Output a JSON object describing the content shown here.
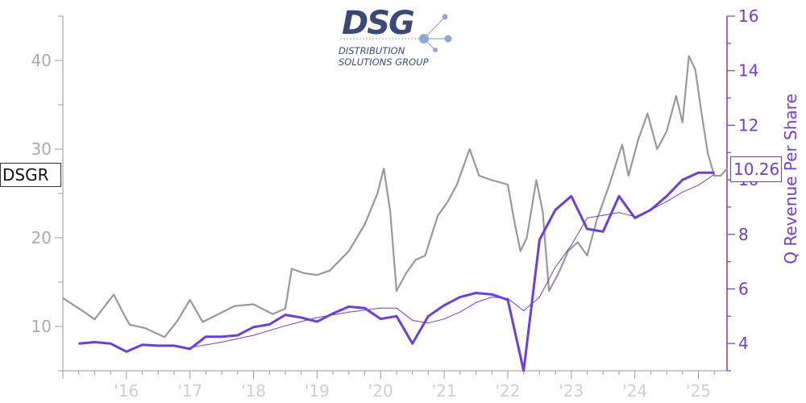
{
  "ticker": "DSGR",
  "last_value_label": "10.26",
  "logo": {
    "mark": "DSG",
    "line1": "DISTRIBUTION",
    "line2": "SOLUTIONS GROUP",
    "colors": {
      "text": "#3a4a78",
      "dots": "#8fa8d8"
    }
  },
  "chart_data": {
    "type": "line",
    "title": "",
    "colors": {
      "price": "#999999",
      "revenue": "#6a3de8",
      "revenue_trend": "#6a3de8",
      "left_axis": "#aaaaaa",
      "right_axis": "#6a3de8"
    },
    "x_axis": {
      "range": [
        2015.0,
        2025.45
      ],
      "tick_values": [
        2016,
        2017,
        2018,
        2019,
        2020,
        2021,
        2022,
        2023,
        2024,
        2025
      ],
      "tick_labels": [
        "'16",
        "'17",
        "'18",
        "'19",
        "'20",
        "'21",
        "'22",
        "'23",
        "'24",
        "'25"
      ]
    },
    "left_axis": {
      "label": "",
      "range": [
        5,
        45
      ],
      "ticks": [
        10,
        20,
        30,
        40
      ]
    },
    "right_axis": {
      "label": "Q Revenue Per Share",
      "range": [
        3,
        16
      ],
      "ticks": [
        4,
        6,
        8,
        10,
        12,
        14,
        16
      ]
    },
    "series": [
      {
        "name": "DSGR",
        "axis": "left",
        "points": [
          [
            2015.0,
            13.2
          ],
          [
            2015.3,
            11.8
          ],
          [
            2015.5,
            10.8
          ],
          [
            2015.8,
            13.6
          ],
          [
            2015.95,
            11.5
          ],
          [
            2016.05,
            10.2
          ],
          [
            2016.3,
            9.8
          ],
          [
            2016.6,
            8.8
          ],
          [
            2016.8,
            10.6
          ],
          [
            2017.0,
            13.0
          ],
          [
            2017.2,
            10.5
          ],
          [
            2017.45,
            11.4
          ],
          [
            2017.7,
            12.3
          ],
          [
            2018.0,
            12.5
          ],
          [
            2018.3,
            11.4
          ],
          [
            2018.5,
            12.0
          ],
          [
            2018.6,
            16.5
          ],
          [
            2018.8,
            16.0
          ],
          [
            2019.0,
            15.8
          ],
          [
            2019.2,
            16.3
          ],
          [
            2019.5,
            18.5
          ],
          [
            2019.75,
            21.5
          ],
          [
            2019.95,
            25.0
          ],
          [
            2020.05,
            27.8
          ],
          [
            2020.15,
            23.0
          ],
          [
            2020.25,
            14.0
          ],
          [
            2020.4,
            16.0
          ],
          [
            2020.55,
            17.5
          ],
          [
            2020.7,
            18.0
          ],
          [
            2020.9,
            22.5
          ],
          [
            2021.05,
            24.0
          ],
          [
            2021.2,
            26.0
          ],
          [
            2021.4,
            30.0
          ],
          [
            2021.55,
            27.0
          ],
          [
            2021.75,
            26.5
          ],
          [
            2022.0,
            26.0
          ],
          [
            2022.1,
            22.0
          ],
          [
            2022.2,
            18.5
          ],
          [
            2022.3,
            20.0
          ],
          [
            2022.45,
            26.5
          ],
          [
            2022.55,
            23.0
          ],
          [
            2022.65,
            14.0
          ],
          [
            2022.8,
            16.0
          ],
          [
            2022.95,
            18.5
          ],
          [
            2023.1,
            19.5
          ],
          [
            2023.25,
            18.0
          ],
          [
            2023.4,
            22.0
          ],
          [
            2023.6,
            26.0
          ],
          [
            2023.8,
            30.5
          ],
          [
            2023.9,
            27.0
          ],
          [
            2024.05,
            31.0
          ],
          [
            2024.2,
            34.0
          ],
          [
            2024.35,
            30.0
          ],
          [
            2024.5,
            32.0
          ],
          [
            2024.65,
            36.0
          ],
          [
            2024.75,
            33.0
          ],
          [
            2024.85,
            40.5
          ],
          [
            2024.95,
            39.0
          ],
          [
            2025.05,
            34.0
          ],
          [
            2025.15,
            29.5
          ],
          [
            2025.25,
            27.0
          ],
          [
            2025.35,
            27.0
          ],
          [
            2025.45,
            27.8
          ]
        ]
      },
      {
        "name": "Q Revenue Per Share",
        "axis": "right",
        "points": [
          [
            2015.25,
            4.0
          ],
          [
            2015.5,
            4.05
          ],
          [
            2015.75,
            4.0
          ],
          [
            2016.0,
            3.7
          ],
          [
            2016.25,
            3.95
          ],
          [
            2016.5,
            3.92
          ],
          [
            2016.75,
            3.92
          ],
          [
            2017.0,
            3.8
          ],
          [
            2017.25,
            4.25
          ],
          [
            2017.5,
            4.25
          ],
          [
            2017.75,
            4.3
          ],
          [
            2018.0,
            4.6
          ],
          [
            2018.25,
            4.7
          ],
          [
            2018.5,
            5.05
          ],
          [
            2018.75,
            4.95
          ],
          [
            2019.0,
            4.8
          ],
          [
            2019.25,
            5.1
          ],
          [
            2019.5,
            5.35
          ],
          [
            2019.75,
            5.3
          ],
          [
            2020.0,
            4.9
          ],
          [
            2020.25,
            5.0
          ],
          [
            2020.5,
            4.0
          ],
          [
            2020.75,
            5.0
          ],
          [
            2021.0,
            5.4
          ],
          [
            2021.25,
            5.7
          ],
          [
            2021.5,
            5.85
          ],
          [
            2021.75,
            5.8
          ],
          [
            2022.0,
            5.6
          ],
          [
            2022.25,
            3.0
          ],
          [
            2022.5,
            7.8
          ],
          [
            2022.75,
            8.9
          ],
          [
            2023.0,
            9.4
          ],
          [
            2023.25,
            8.2
          ],
          [
            2023.5,
            8.1
          ],
          [
            2023.75,
            9.4
          ],
          [
            2024.0,
            8.6
          ],
          [
            2024.25,
            8.9
          ],
          [
            2024.5,
            9.4
          ],
          [
            2024.75,
            10.0
          ],
          [
            2025.0,
            10.26
          ],
          [
            2025.25,
            10.26
          ]
        ]
      },
      {
        "name": "",
        "axis": "right",
        "points": [
          [
            2017.0,
            3.85
          ],
          [
            2017.5,
            4.05
          ],
          [
            2018.0,
            4.3
          ],
          [
            2018.5,
            4.65
          ],
          [
            2019.0,
            4.95
          ],
          [
            2019.5,
            5.15
          ],
          [
            2020.0,
            5.3
          ],
          [
            2020.25,
            5.3
          ],
          [
            2020.5,
            4.85
          ],
          [
            2020.75,
            4.75
          ],
          [
            2021.0,
            4.9
          ],
          [
            2021.25,
            5.15
          ],
          [
            2021.5,
            5.5
          ],
          [
            2021.75,
            5.7
          ],
          [
            2022.0,
            5.65
          ],
          [
            2022.25,
            5.2
          ],
          [
            2022.5,
            5.7
          ],
          [
            2022.75,
            6.8
          ],
          [
            2023.0,
            7.6
          ],
          [
            2023.25,
            8.6
          ],
          [
            2023.5,
            8.7
          ],
          [
            2023.75,
            8.8
          ],
          [
            2024.0,
            8.65
          ],
          [
            2024.25,
            8.9
          ],
          [
            2024.5,
            9.2
          ],
          [
            2024.75,
            9.55
          ],
          [
            2025.0,
            9.8
          ],
          [
            2025.25,
            10.2
          ]
        ]
      }
    ]
  }
}
